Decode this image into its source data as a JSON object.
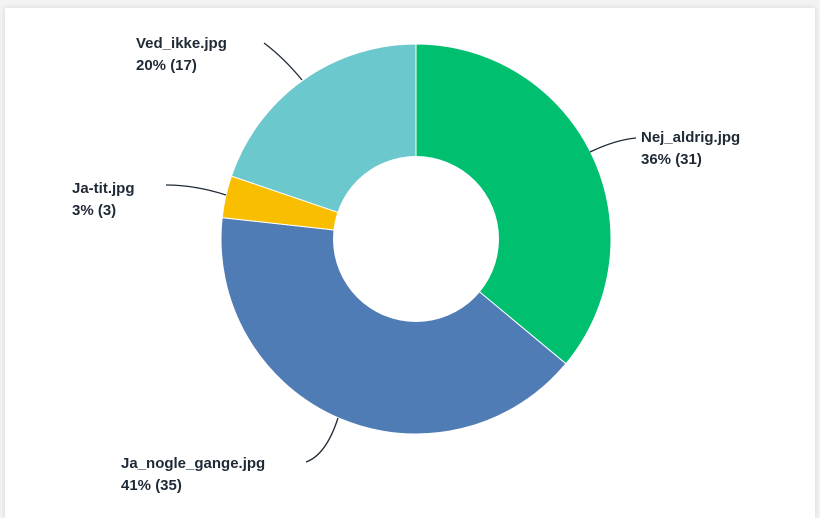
{
  "chart_data": {
    "type": "pie",
    "donut": true,
    "title": "",
    "start_angle_deg": 0,
    "direction": "clockwise",
    "slices": [
      {
        "label": "Nej_aldrig.jpg",
        "percent_text": "36% (31)",
        "value": 31,
        "color": "#00bf6f"
      },
      {
        "label": "Ja_nogle_gange.jpg",
        "percent_text": "41% (35)",
        "value": 35,
        "color": "#507cb6"
      },
      {
        "label": "Ja-tit.jpg",
        "percent_text": "3% (3)",
        "value": 3,
        "color": "#f9be00"
      },
      {
        "label": "Ved_ikke.jpg",
        "percent_text": "20% (17)",
        "value": 17,
        "color": "#6bc8cd"
      }
    ]
  }
}
